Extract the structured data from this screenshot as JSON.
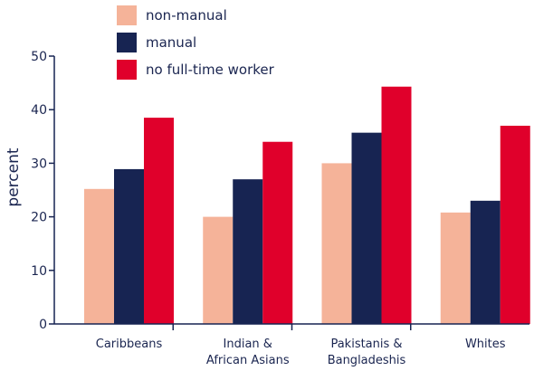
{
  "chart_data": {
    "type": "bar",
    "categories": [
      [
        "Caribbeans"
      ],
      [
        "Indian &",
        "African Asians"
      ],
      [
        "Pakistanis &",
        "Bangladeshis"
      ],
      [
        "Whites"
      ]
    ],
    "series": [
      {
        "name": "non-manual",
        "color": "#f5b399",
        "values": [
          25.2,
          20,
          30,
          20.8
        ]
      },
      {
        "name": "manual",
        "color": "#172452",
        "values": [
          28.9,
          27,
          35.7,
          23
        ]
      },
      {
        "name": "no full-time worker",
        "color": "#e0002b",
        "values": [
          38.5,
          34,
          44.3,
          37
        ]
      }
    ],
    "ylabel": "percent",
    "xlabel": "",
    "ylim": [
      0,
      50
    ],
    "yticks": [
      0,
      10,
      20,
      30,
      40,
      50
    ],
    "grid": false,
    "legend_position": "top",
    "axis_color": "#172452"
  }
}
